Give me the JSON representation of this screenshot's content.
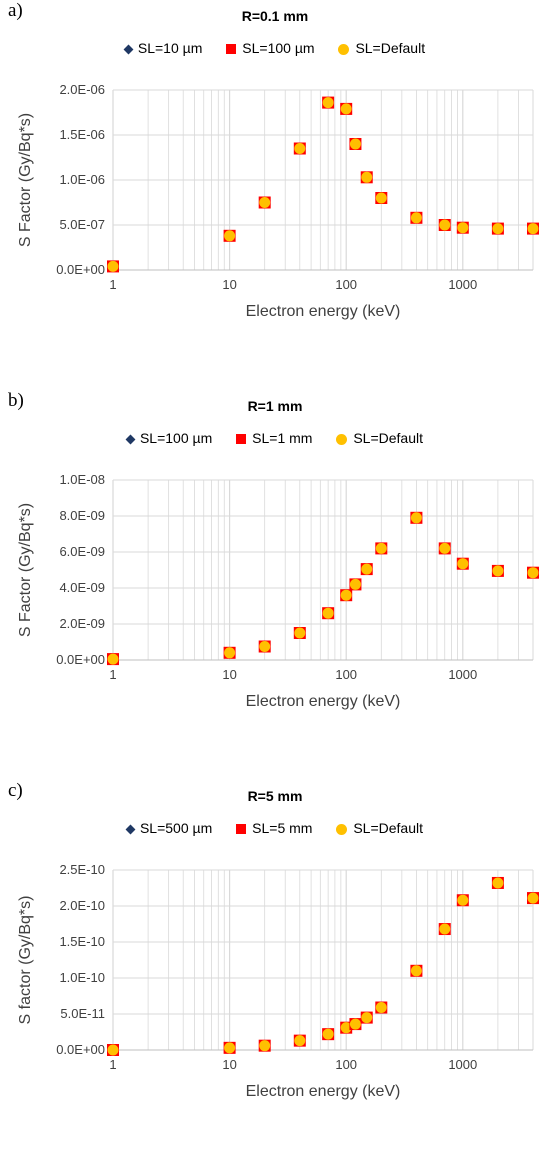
{
  "panels": [
    {
      "letter": "a)",
      "title": "R=0.1 mm",
      "legend": [
        "SL=10 µm",
        "SL=100 µm",
        "SL=Default"
      ]
    },
    {
      "letter": "b)",
      "title": "R=1 mm",
      "legend": [
        "SL=100 µm",
        "SL=1 mm",
        "SL=Default"
      ]
    },
    {
      "letter": "c)",
      "title": "R=5 mm",
      "legend": [
        "SL=500 µm",
        "SL=5 mm",
        "SL=Default"
      ]
    }
  ],
  "colors": {
    "diamond": "#1f3864",
    "square": "#ff0000",
    "circle": "#ffc000",
    "grid": "#d9d9d9"
  },
  "chart_data": [
    {
      "type": "scatter",
      "title": "R=0.1 mm",
      "xlabel": "Electron energy (keV)",
      "ylabel": "S Factor (Gy/Bq*s)",
      "xscale": "log",
      "xlim": [
        1,
        4000
      ],
      "ylim": [
        0,
        2e-06
      ],
      "xticks": [
        1,
        10,
        100,
        1000
      ],
      "xtick_labels": [
        "1",
        "10",
        "100",
        "1000"
      ],
      "yticks": [
        0,
        5e-07,
        1e-06,
        1.5e-06,
        2e-06
      ],
      "ytick_labels": [
        "0.0E+00",
        "5.0E-07",
        "1.0E-06",
        "1.5E-06",
        "2.0E-06"
      ],
      "x": [
        1,
        10,
        20,
        40,
        70,
        100,
        120,
        150,
        200,
        400,
        700,
        1000,
        2000,
        4000
      ],
      "series": [
        {
          "name": "SL=10 µm",
          "values": [
            4e-08,
            3.8e-07,
            7.5e-07,
            1.35e-06,
            1.86e-06,
            1.79e-06,
            1.4e-06,
            1.03e-06,
            8e-07,
            5.8e-07,
            5e-07,
            4.7e-07,
            4.6e-07,
            4.6e-07
          ]
        },
        {
          "name": "SL=100 µm",
          "values": [
            4e-08,
            3.8e-07,
            7.5e-07,
            1.35e-06,
            1.86e-06,
            1.79e-06,
            1.4e-06,
            1.03e-06,
            8e-07,
            5.8e-07,
            5e-07,
            4.7e-07,
            4.6e-07,
            4.6e-07
          ]
        },
        {
          "name": "SL=Default",
          "values": [
            4e-08,
            3.8e-07,
            7.5e-07,
            1.35e-06,
            1.86e-06,
            1.79e-06,
            1.4e-06,
            1.03e-06,
            8e-07,
            5.8e-07,
            5e-07,
            4.7e-07,
            4.6e-07,
            4.6e-07
          ]
        }
      ],
      "grid": true,
      "legend_position": "top"
    },
    {
      "type": "scatter",
      "title": "R=1 mm",
      "xlabel": "Electron energy (keV)",
      "ylabel": "S Factor (Gy/Bq*s)",
      "xscale": "log",
      "xlim": [
        1,
        4000
      ],
      "ylim": [
        0,
        1e-08
      ],
      "xticks": [
        1,
        10,
        100,
        1000
      ],
      "xtick_labels": [
        "1",
        "10",
        "100",
        "1000"
      ],
      "yticks": [
        0,
        2e-09,
        4e-09,
        6e-09,
        8e-09,
        1e-08
      ],
      "ytick_labels": [
        "0.0E+00",
        "2.0E-09",
        "4.0E-09",
        "6.0E-09",
        "8.0E-09",
        "1.0E-08"
      ],
      "x": [
        1,
        10,
        20,
        40,
        70,
        100,
        120,
        150,
        200,
        400,
        700,
        1000,
        2000,
        4000
      ],
      "series": [
        {
          "name": "SL=100 µm",
          "values": [
            5e-11,
            4e-10,
            7.5e-10,
            1.5e-09,
            2.6e-09,
            3.6e-09,
            4.2e-09,
            5.05e-09,
            6.2e-09,
            7.9e-09,
            6.2e-09,
            5.35e-09,
            4.95e-09,
            4.85e-09
          ]
        },
        {
          "name": "SL=1 mm",
          "values": [
            5e-11,
            4e-10,
            7.5e-10,
            1.5e-09,
            2.6e-09,
            3.6e-09,
            4.2e-09,
            5.05e-09,
            6.2e-09,
            7.9e-09,
            6.2e-09,
            5.35e-09,
            4.95e-09,
            4.85e-09
          ]
        },
        {
          "name": "SL=Default",
          "values": [
            5e-11,
            4e-10,
            7.5e-10,
            1.5e-09,
            2.6e-09,
            3.6e-09,
            4.2e-09,
            5.05e-09,
            6.2e-09,
            7.9e-09,
            6.2e-09,
            5.35e-09,
            4.95e-09,
            4.85e-09
          ]
        }
      ],
      "grid": true,
      "legend_position": "top"
    },
    {
      "type": "scatter",
      "title": "R=5 mm",
      "xlabel": "Electron energy (keV)",
      "ylabel": "S factor (Gy/Bq*s)",
      "xscale": "log",
      "xlim": [
        1,
        4000
      ],
      "ylim": [
        0,
        2.5e-10
      ],
      "xticks": [
        1,
        10,
        100,
        1000
      ],
      "xtick_labels": [
        "1",
        "10",
        "100",
        "1000"
      ],
      "yticks": [
        0,
        5e-11,
        1e-10,
        1.5e-10,
        2e-10,
        2.5e-10
      ],
      "ytick_labels": [
        "0.0E+00",
        "5.0E-11",
        "1.0E-10",
        "1.5E-10",
        "2.0E-10",
        "2.5E-10"
      ],
      "x": [
        1,
        10,
        20,
        40,
        70,
        100,
        120,
        150,
        200,
        400,
        700,
        1000,
        2000,
        4000
      ],
      "series": [
        {
          "name": "SL=500 µm",
          "values": [
            0,
            3e-12,
            6e-12,
            1.3e-11,
            2.2e-11,
            3.1e-11,
            3.6e-11,
            4.5e-11,
            5.9e-11,
            1.1e-10,
            1.68e-10,
            2.08e-10,
            2.32e-10,
            2.11e-10
          ]
        },
        {
          "name": "SL=5 mm",
          "values": [
            0,
            3e-12,
            6e-12,
            1.3e-11,
            2.2e-11,
            3.1e-11,
            3.6e-11,
            4.5e-11,
            5.9e-11,
            1.1e-10,
            1.68e-10,
            2.08e-10,
            2.32e-10,
            2.11e-10
          ]
        },
        {
          "name": "SL=Default",
          "values": [
            0,
            3e-12,
            6e-12,
            1.3e-11,
            2.2e-11,
            3.1e-11,
            3.6e-11,
            4.5e-11,
            5.9e-11,
            1.1e-10,
            1.68e-10,
            2.08e-10,
            2.32e-10,
            2.11e-10
          ]
        }
      ],
      "grid": true,
      "legend_position": "top"
    }
  ]
}
